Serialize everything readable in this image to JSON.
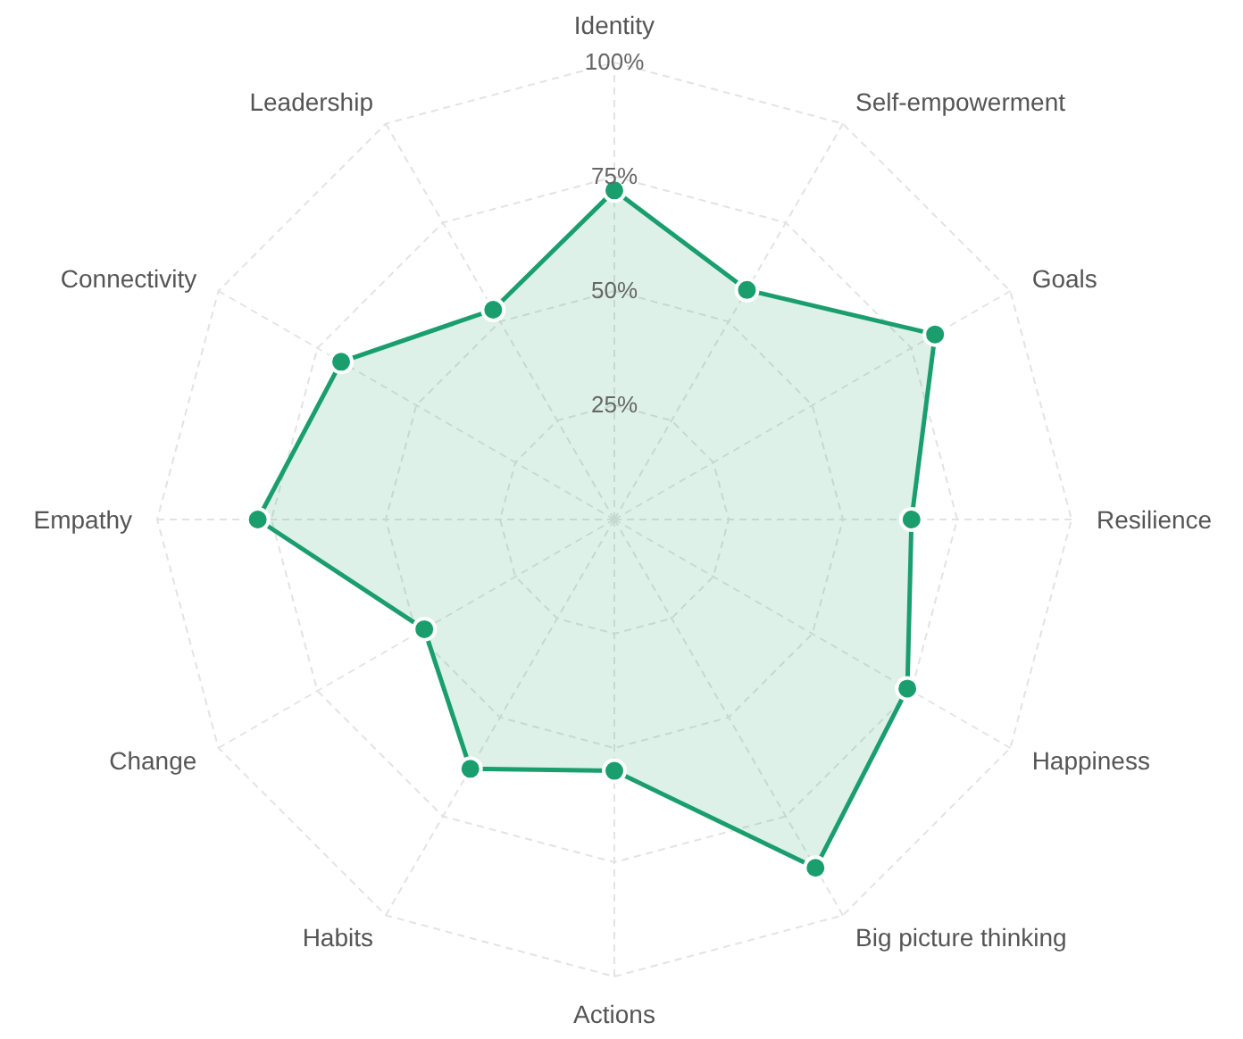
{
  "chart_data": {
    "type": "radar",
    "categories": [
      "Identity",
      "Self-empowerment",
      "Goals",
      "Resilience",
      "Happiness",
      "Big picture thinking",
      "Actions",
      "Habits",
      "Change",
      "Empathy",
      "Connectivity",
      "Leadership"
    ],
    "series": [
      {
        "color": "#1a9e6e",
        "values": [
          72,
          58,
          81,
          65,
          74,
          88,
          55,
          63,
          48,
          78,
          69,
          53
        ]
      }
    ],
    "ylim": [
      0,
      100
    ],
    "yticks": [
      {
        "value": 25,
        "label": "25%"
      },
      {
        "value": 50,
        "label": "50%"
      },
      {
        "value": 75,
        "label": "75%"
      },
      {
        "value": 100,
        "label": "100%"
      }
    ],
    "grid": true,
    "marker": "circle",
    "line_style": "solid"
  }
}
